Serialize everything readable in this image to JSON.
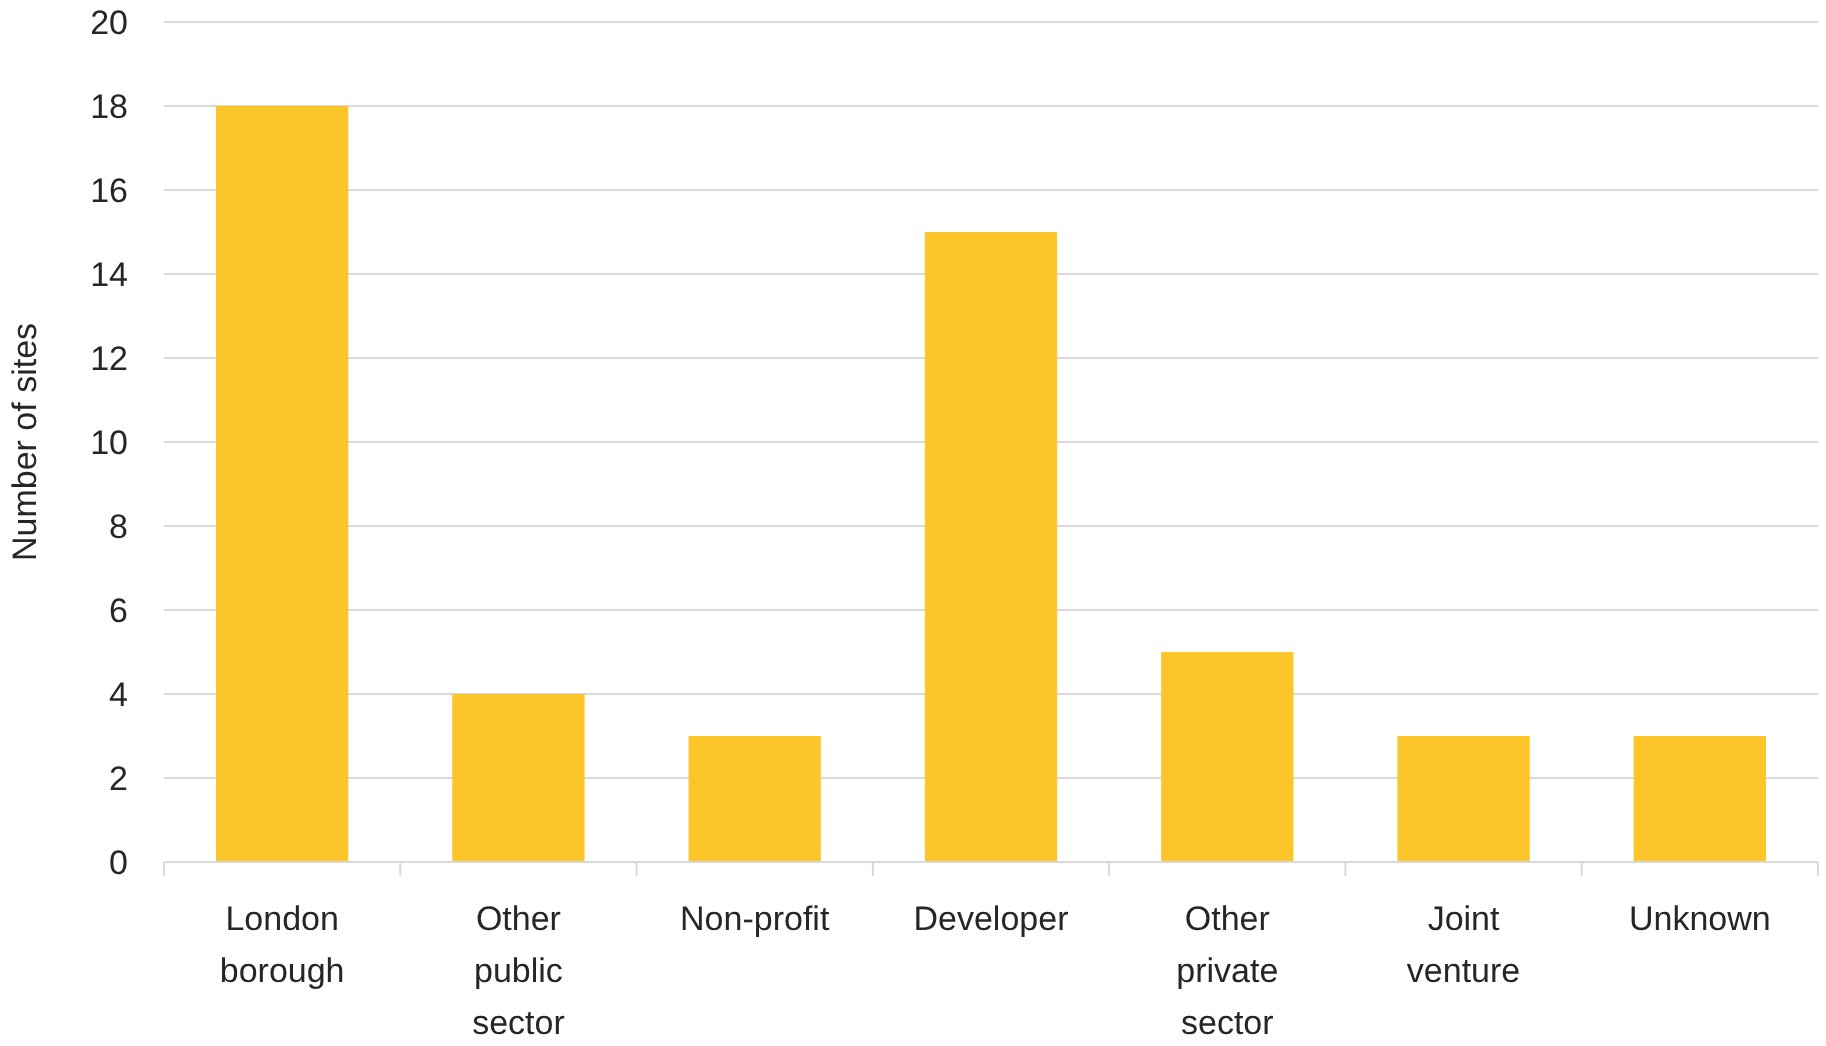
{
  "chart_data": {
    "type": "bar",
    "ylabel": "Number of sites",
    "categories": [
      "London borough",
      "Other public sector",
      "Non-profit",
      "Developer",
      "Other private sector",
      "Joint venture",
      "Unknown"
    ],
    "values": [
      18,
      4,
      3,
      15,
      5,
      3,
      3
    ],
    "color": "#fcc62a",
    "ylim": [
      0,
      20
    ],
    "yticks": [
      0,
      2,
      4,
      6,
      8,
      10,
      12,
      14,
      16,
      18,
      20
    ],
    "grid": "y"
  }
}
